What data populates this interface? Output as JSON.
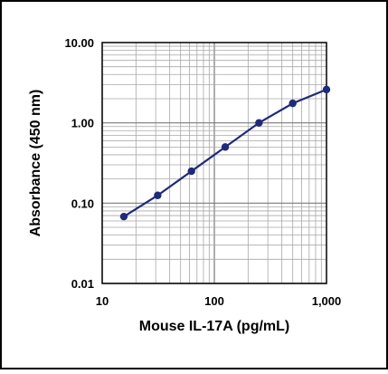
{
  "chart_data": {
    "type": "line",
    "xscale": "log",
    "yscale": "log",
    "xlim": [
      10,
      1000
    ],
    "ylim": [
      0.01,
      10
    ],
    "xlabel": "Mouse IL-17A (pg/mL)",
    "ylabel": "Absorbance (450 nm)",
    "x_tick_values": [
      10,
      100,
      1000
    ],
    "x_tick_labels": [
      "10",
      "100",
      "1,000"
    ],
    "y_tick_values": [
      0.01,
      0.1,
      1,
      10
    ],
    "y_tick_labels": [
      "0.01",
      "0.10",
      "1.00",
      "10.00"
    ],
    "grid": true,
    "legend": "none",
    "series": [
      {
        "x": [
          15.6,
          31.25,
          62.5,
          125,
          250,
          500,
          1000
        ],
        "y": [
          0.068,
          0.125,
          0.25,
          0.5,
          1.0,
          1.75,
          2.6
        ],
        "color": "#1f2a7a"
      }
    ]
  }
}
